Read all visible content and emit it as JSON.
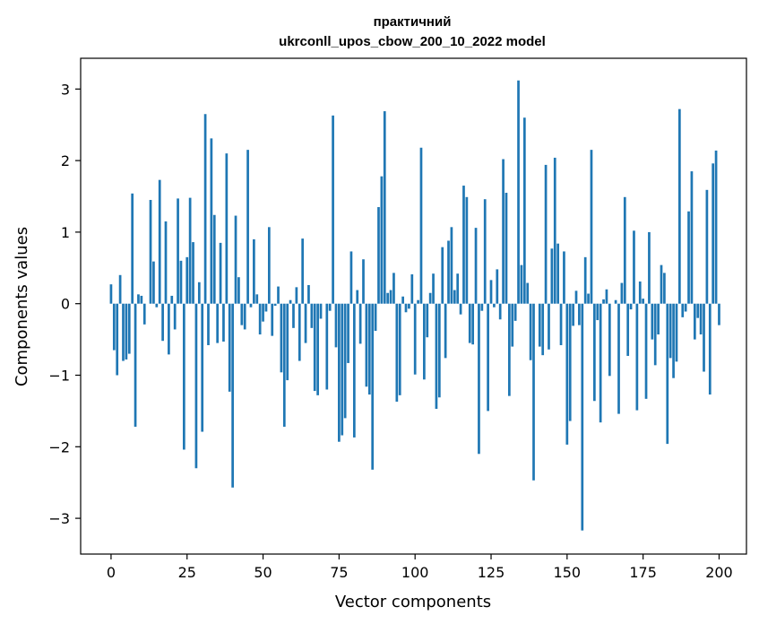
{
  "chart_data": {
    "type": "bar",
    "title_line1": "практичний",
    "title_line2": "ukrconll_upos_cbow_200_10_2022 model",
    "xlabel": "Vector components",
    "ylabel": "Components values",
    "xlim": [
      -10,
      209
    ],
    "ylim": [
      -3.5,
      3.43
    ],
    "xticks": [
      0,
      25,
      50,
      75,
      100,
      125,
      150,
      175,
      200
    ],
    "xtick_labels": [
      "0",
      "25",
      "50",
      "75",
      "100",
      "125",
      "150",
      "175",
      "200"
    ],
    "yticks": [
      -3,
      -2,
      -1,
      0,
      1,
      2,
      3
    ],
    "ytick_labels": [
      "−3",
      "−2",
      "−1",
      "0",
      "1",
      "2",
      "3"
    ],
    "bar_width": 0.8,
    "bar_color": "#1f77b4",
    "values": [
      0.27,
      -0.65,
      -1.0,
      0.4,
      -0.8,
      -0.78,
      -0.7,
      1.54,
      -1.72,
      0.13,
      0.11,
      -0.29,
      0.0,
      1.45,
      0.59,
      -0.05,
      1.73,
      -0.52,
      1.15,
      -0.71,
      0.11,
      -0.36,
      1.47,
      0.6,
      -2.04,
      0.65,
      1.48,
      0.86,
      -2.3,
      0.3,
      -1.79,
      2.65,
      -0.58,
      2.31,
      1.24,
      -0.55,
      0.85,
      -0.53,
      2.1,
      -1.23,
      -2.57,
      1.23,
      0.37,
      -0.3,
      -0.36,
      2.15,
      -0.05,
      0.9,
      0.13,
      -0.43,
      -0.25,
      -0.11,
      1.07,
      -0.45,
      -0.03,
      0.24,
      -0.96,
      -1.72,
      -1.07,
      0.05,
      -0.34,
      0.23,
      -0.8,
      0.91,
      -0.55,
      0.26,
      -0.34,
      -1.22,
      -1.28,
      -0.21,
      0.0,
      -1.2,
      -0.1,
      2.63,
      -0.61,
      -1.93,
      -1.84,
      -1.6,
      -0.83,
      0.73,
      -1.87,
      0.19,
      -0.56,
      0.62,
      -1.16,
      -1.27,
      -2.32,
      -0.38,
      1.35,
      1.78,
      2.69,
      0.15,
      0.19,
      0.43,
      -1.37,
      -1.28,
      0.1,
      -0.12,
      -0.07,
      0.41,
      -0.99,
      0.05,
      2.18,
      -1.06,
      -0.47,
      0.15,
      0.42,
      -1.47,
      -1.31,
      0.79,
      -0.76,
      0.88,
      1.07,
      0.19,
      0.42,
      -0.15,
      1.65,
      1.49,
      -0.55,
      -0.57,
      1.06,
      -2.1,
      -0.1,
      1.46,
      -1.5,
      0.33,
      -0.05,
      0.48,
      -0.22,
      2.02,
      1.55,
      -1.29,
      -0.6,
      -0.24,
      3.12,
      0.54,
      2.6,
      0.29,
      -0.79,
      -2.47,
      0.0,
      -0.6,
      -0.72,
      1.94,
      -0.64,
      0.77,
      2.04,
      0.84,
      -0.58,
      0.73,
      -1.97,
      -1.64,
      -0.31,
      0.18,
      -0.3,
      -3.17,
      0.65,
      0.14,
      2.15,
      -1.36,
      -0.23,
      -1.66,
      0.06,
      0.2,
      -1.01,
      0.0,
      0.05,
      -1.54,
      0.29,
      1.49,
      -0.73,
      -0.08,
      1.02,
      -1.49,
      0.31,
      0.07,
      -1.33,
      1.0,
      -0.5,
      -0.86,
      -0.43,
      0.54,
      0.43,
      -1.96,
      -0.76,
      -1.04,
      -0.81,
      2.72,
      -0.19,
      -0.11,
      1.29,
      1.85,
      -0.5,
      -0.2,
      -0.43,
      -0.95,
      1.59,
      -1.27,
      1.96,
      2.14,
      -0.3
    ]
  }
}
